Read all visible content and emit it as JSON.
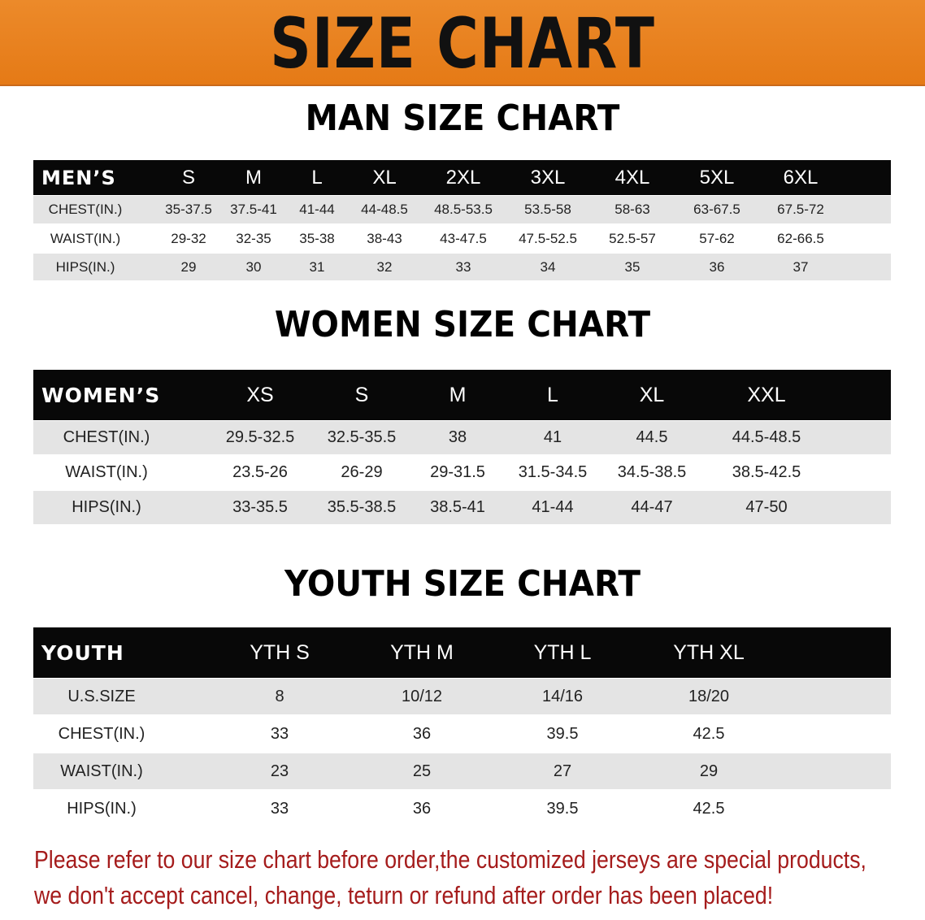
{
  "title": "SIZE CHART",
  "colors": {
    "banner": "#e8801e",
    "header_row": "#080808",
    "stripe": "#e4e4e4",
    "note": "#a51c1c"
  },
  "men": {
    "title": "MAN SIZE CHART",
    "header": [
      "MEN’S",
      "S",
      "M",
      "L",
      "XL",
      "2XL",
      "3XL",
      "4XL",
      "5XL",
      "6XL"
    ],
    "rows": [
      [
        "CHEST(IN.)",
        "35-37.5",
        "37.5-41",
        "41-44",
        "44-48.5",
        "48.5-53.5",
        "53.5-58",
        "58-63",
        "63-67.5",
        "67.5-72"
      ],
      [
        "WAIST(IN.)",
        "29-32",
        "32-35",
        "35-38",
        "38-43",
        "43-47.5",
        "47.5-52.5",
        "52.5-57",
        "57-62",
        "62-66.5"
      ],
      [
        "HIPS(IN.)",
        "29",
        "30",
        "31",
        "32",
        "33",
        "34",
        "35",
        "36",
        "37"
      ]
    ]
  },
  "women": {
    "title": "WOMEN SIZE CHART",
    "header": [
      "WOMEN’S",
      "XS",
      "S",
      "M",
      "L",
      "XL",
      "XXL"
    ],
    "rows": [
      [
        "CHEST(IN.)",
        "29.5-32.5",
        "32.5-35.5",
        "38",
        "41",
        "44.5",
        "44.5-48.5"
      ],
      [
        "WAIST(IN.)",
        "23.5-26",
        "26-29",
        "29-31.5",
        "31.5-34.5",
        "34.5-38.5",
        "38.5-42.5"
      ],
      [
        "HIPS(IN.)",
        "33-35.5",
        "35.5-38.5",
        "38.5-41",
        "41-44",
        "44-47",
        "47-50"
      ]
    ]
  },
  "youth": {
    "title": "YOUTH SIZE CHART",
    "header": [
      "YOUTH",
      "YTH S",
      "YTH M",
      "YTH L",
      "YTH XL"
    ],
    "rows": [
      [
        "U.S.SIZE",
        "8",
        "10/12",
        "14/16",
        "18/20"
      ],
      [
        "CHEST(IN.)",
        "33",
        "36",
        "39.5",
        "42.5"
      ],
      [
        "WAIST(IN.)",
        "23",
        "25",
        "27",
        "29"
      ],
      [
        "HIPS(IN.)",
        "33",
        "36",
        "39.5",
        "42.5"
      ]
    ]
  },
  "note": [
    "Please refer to our size chart before order,the customized jerseys are special products,",
    "we don't accept cancel, change, teturn or refund after order has been placed!"
  ]
}
